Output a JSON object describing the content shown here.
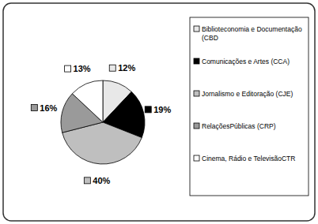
{
  "chart_data": {
    "type": "pie",
    "categories": [
      "Biblioteconomia e Documentação (CBD",
      "Comunicações e Artes (CCA)",
      "Jornalismo e Editoração (CJE)",
      "RelaçõesPúblicas (CRP)",
      "Cinema, Rádio e TelevisãoCTR"
    ],
    "values": [
      12,
      19,
      40,
      16,
      13
    ],
    "value_labels": [
      "12%",
      "19%",
      "40%",
      "16%",
      "13%"
    ],
    "colors": [
      "#e8e8e8",
      "#000000",
      "#bfbfbf",
      "#9a9a9a",
      "#ffffff"
    ],
    "data_labels": true,
    "legend": "right"
  }
}
